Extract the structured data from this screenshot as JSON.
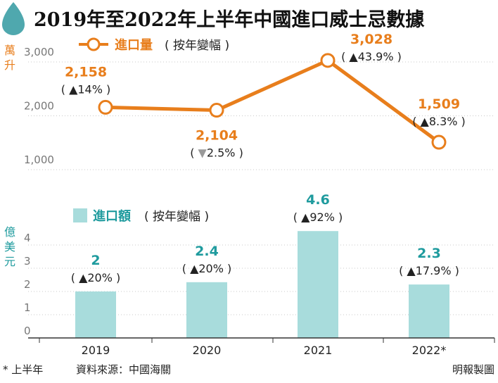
{
  "title": "2019年至2022年上半年中國進口威士忌數據",
  "colors": {
    "line": "#e87e1c",
    "bar": "#a8dcdc",
    "bar_label": "#1f9b9e",
    "drop_icon": "#4fa8ae",
    "grid": "#c8c8c8"
  },
  "top_chart": {
    "unit_label": "萬升",
    "legend_label": "進口量",
    "legend_note": "( 按年變幅 )"
  },
  "bottom_chart": {
    "unit_label": "億美元",
    "legend_label": "進口額",
    "legend_note": "( 按年變幅 )"
  },
  "footer": {
    "note": "* 上半年",
    "source": "資料來源：中國海關",
    "credit": "明報製圖"
  },
  "chart_data": [
    {
      "type": "line",
      "x": [
        "2019",
        "2020",
        "2021",
        "2022*"
      ],
      "series": [
        {
          "values": [
            2158,
            2104,
            3028,
            1509
          ],
          "value_labels": [
            "2,158",
            "2,104",
            "3,028",
            "1,509"
          ],
          "change_labels": [
            "( ▲14% )",
            "( ▼2.5% )",
            "( ▲43.9% )",
            "( ▲8.3% )"
          ],
          "change_direction": [
            "up",
            "down",
            "up",
            "up"
          ]
        }
      ],
      "yticks": [
        "1,000",
        "2,000",
        "3,000"
      ],
      "ytick_values": [
        1000,
        2000,
        3000
      ],
      "ylim": [
        1000,
        3000
      ],
      "grid": "horizontal dashed"
    },
    {
      "type": "bar",
      "categories": [
        "2019",
        "2020",
        "2021",
        "2022*"
      ],
      "series": [
        {
          "values": [
            2,
            2.4,
            4.6,
            2.3
          ],
          "value_labels": [
            "2",
            "2.4",
            "4.6",
            "2.3"
          ],
          "change_labels": [
            "( ▲20% )",
            "( ▲20% )",
            "( ▲92% )",
            "( ▲17.9% )"
          ]
        }
      ],
      "yticks": [
        "0",
        "1",
        "2",
        "3",
        "4"
      ],
      "ytick_values": [
        0,
        1,
        2,
        3,
        4
      ],
      "ylim": [
        0,
        4
      ],
      "grid": "horizontal dashed"
    }
  ]
}
